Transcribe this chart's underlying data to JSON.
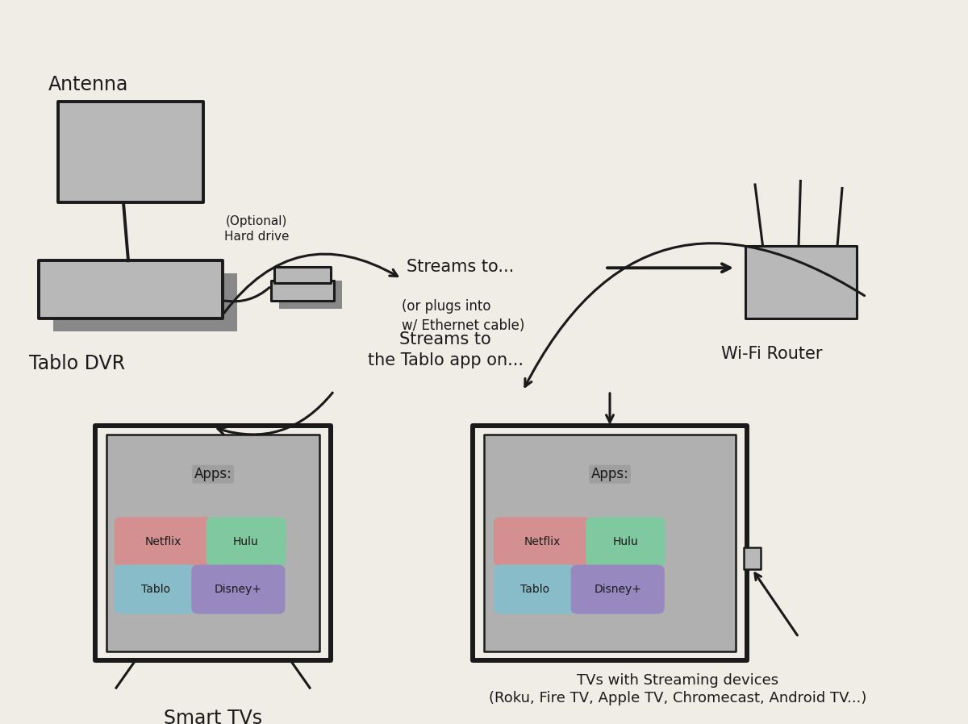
{
  "bg_color": "#f0ece6",
  "sketch_color": "#1a1a1a",
  "gray_fill": "#a8a8a8",
  "light_gray_fill": "#b8b8b8",
  "screen_gray": "#b0b0b0",
  "netflix_color": "#d49090",
  "hulu_color": "#80c8a0",
  "tablo_color": "#88bcc8",
  "disney_color": "#9888c0",
  "apps_label_color": "#9a9a9a",
  "labels": {
    "antenna": "Antenna",
    "tablo": "Tablo DVR",
    "hard_drive_label": "(Optional)\nHard drive",
    "streams_to": "Streams to...",
    "or_plugs": "(or plugs into\nw/ Ethernet cable)",
    "wifi_router": "Wi-Fi Router",
    "streams_tablo_app": "Streams to\nthe Tablo app on...",
    "smart_tvs": "Smart TVs",
    "tvs_streaming": "TVs with Streaming devices\n(Roku, Fire TV, Apple TV, Chromecast, Android TV...)",
    "apps": "Apps:",
    "netflix": "Netflix",
    "hulu": "Hulu",
    "tablo_app": "Tablo",
    "disney": "Disney+"
  },
  "figsize": [
    12.0,
    8.98
  ],
  "dpi": 100
}
